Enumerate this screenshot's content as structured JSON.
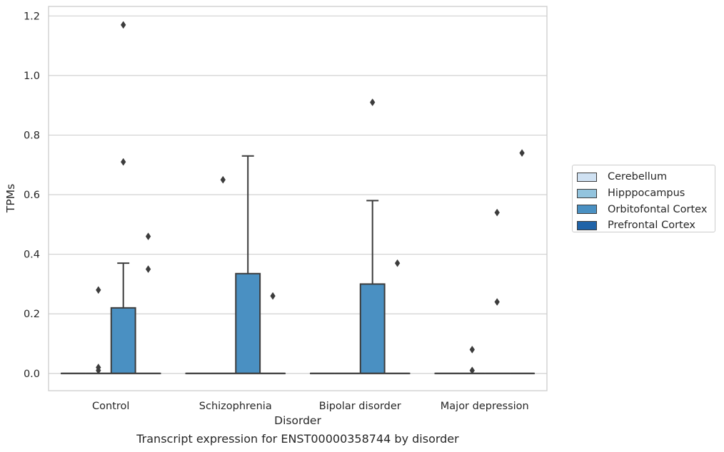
{
  "chart_data": {
    "type": "box",
    "xlabel": "Disorder",
    "ylabel": "TPMs",
    "caption": "Transcript expression for ENST00000358744 by disorder",
    "ylim": [
      -0.058,
      1.232
    ],
    "yticks": [
      0.0,
      0.2,
      0.4,
      0.6,
      0.8,
      1.0,
      1.2
    ],
    "ytick_labels": [
      "0.0",
      "0.2",
      "0.4",
      "0.6",
      "0.8",
      "1.0",
      "1.2"
    ],
    "grid": "horizontal",
    "legend_position": "outside-right",
    "categories": [
      "Control",
      "Schizophrenia",
      "Bipolar disorder",
      "Major depression"
    ],
    "series": [
      {
        "name": "Cerebellum",
        "color": "#cfe1f2",
        "boxes": [
          {
            "category": "Control",
            "q1": 0,
            "median": 0,
            "q3": 0,
            "whisker_low": 0,
            "whisker_high": 0,
            "outliers": []
          },
          {
            "category": "Schizophrenia",
            "q1": 0,
            "median": 0,
            "q3": 0,
            "whisker_low": 0,
            "whisker_high": 0,
            "outliers": []
          },
          {
            "category": "Bipolar disorder",
            "q1": 0,
            "median": 0,
            "q3": 0,
            "whisker_low": 0,
            "whisker_high": 0,
            "outliers": []
          },
          {
            "category": "Major depression",
            "q1": 0,
            "median": 0,
            "q3": 0,
            "whisker_low": 0,
            "whisker_high": 0,
            "outliers": []
          }
        ]
      },
      {
        "name": "Hipppocampus",
        "color": "#93c4de",
        "boxes": [
          {
            "category": "Control",
            "q1": 0,
            "median": 0,
            "q3": 0,
            "whisker_low": 0,
            "whisker_high": 0,
            "outliers": [
              0.28,
              0.02,
              0.01
            ]
          },
          {
            "category": "Schizophrenia",
            "q1": 0,
            "median": 0,
            "q3": 0,
            "whisker_low": 0,
            "whisker_high": 0,
            "outliers": [
              0.65
            ]
          },
          {
            "category": "Bipolar disorder",
            "q1": 0,
            "median": 0,
            "q3": 0,
            "whisker_low": 0,
            "whisker_high": 0,
            "outliers": []
          },
          {
            "category": "Major depression",
            "q1": 0,
            "median": 0,
            "q3": 0,
            "whisker_low": 0,
            "whisker_high": 0,
            "outliers": [
              0.08,
              0.01
            ]
          }
        ]
      },
      {
        "name": "Orbitofontal Cortex",
        "color": "#4a90c2",
        "boxes": [
          {
            "category": "Control",
            "q1": 0,
            "median": 0,
            "q3": 0.22,
            "whisker_low": 0,
            "whisker_high": 0.37,
            "outliers": [
              1.17,
              0.71
            ]
          },
          {
            "category": "Schizophrenia",
            "q1": 0,
            "median": 0,
            "q3": 0.335,
            "whisker_low": 0,
            "whisker_high": 0.73,
            "outliers": []
          },
          {
            "category": "Bipolar disorder",
            "q1": 0,
            "median": 0,
            "q3": 0.3,
            "whisker_low": 0,
            "whisker_high": 0.58,
            "outliers": [
              0.91
            ]
          },
          {
            "category": "Major depression",
            "q1": 0,
            "median": 0,
            "q3": 0,
            "whisker_low": 0,
            "whisker_high": 0,
            "outliers": [
              0.54,
              0.24
            ]
          }
        ]
      },
      {
        "name": "Prefrontal Cortex",
        "color": "#1f63a8",
        "boxes": [
          {
            "category": "Control",
            "q1": 0,
            "median": 0,
            "q3": 0,
            "whisker_low": 0,
            "whisker_high": 0,
            "outliers": [
              0.46,
              0.35
            ]
          },
          {
            "category": "Schizophrenia",
            "q1": 0,
            "median": 0,
            "q3": 0,
            "whisker_low": 0,
            "whisker_high": 0,
            "outliers": [
              0.26
            ]
          },
          {
            "category": "Bipolar disorder",
            "q1": 0,
            "median": 0,
            "q3": 0,
            "whisker_low": 0,
            "whisker_high": 0,
            "outliers": [
              0.37
            ]
          },
          {
            "category": "Major depression",
            "q1": 0,
            "median": 0,
            "q3": 0,
            "whisker_low": 0,
            "whisker_high": 0,
            "outliers": [
              0.74
            ]
          }
        ]
      }
    ],
    "colors": {
      "grid": "#cccccc",
      "frame": "#cccccc",
      "box_edge": "#3c3c3c",
      "text": "#262626"
    }
  }
}
